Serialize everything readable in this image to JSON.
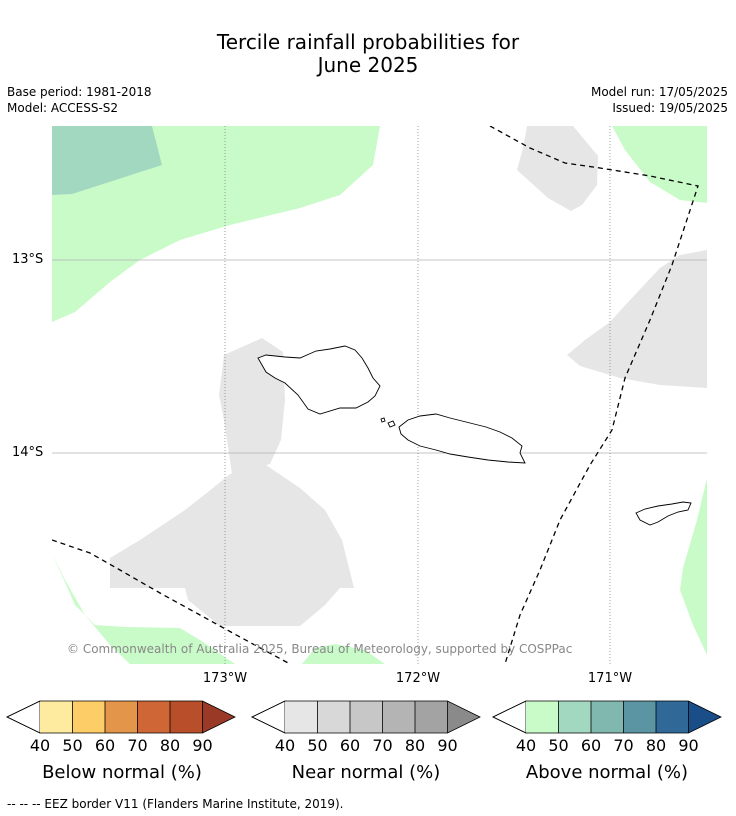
{
  "title_line1": "Tercile rainfall probabilities for",
  "title_line2": "June 2025",
  "base_period": "Base period: 1981-2018",
  "model": "Model: ACCESS-S2",
  "model_run": "Model run: 17/05/2025",
  "issued": "Issued: 19/05/2025",
  "lat_labels": [
    "13°S",
    "14°S"
  ],
  "lon_labels": [
    "173°W",
    "172°W",
    "171°W"
  ],
  "copyright": "© Commonwealth of Australia 2025, Bureau of Meteorology, supported by COSPPac",
  "colorbars": [
    {
      "label": "Below normal (%)",
      "ticks": [
        "40",
        "50",
        "60",
        "70",
        "80",
        "90"
      ],
      "colors": [
        "#ffeba0",
        "#fdcd68",
        "#e3954a",
        "#cf6636",
        "#b84f2a",
        "#9a3a26"
      ]
    },
    {
      "label": "Near normal (%)",
      "ticks": [
        "40",
        "50",
        "60",
        "70",
        "80",
        "90"
      ],
      "colors": [
        "#e6e6e6",
        "#d8d8d8",
        "#c7c7c7",
        "#b4b4b4",
        "#a3a3a3",
        "#8a8a8a"
      ]
    },
    {
      "label": "Above normal (%)",
      "ticks": [
        "40",
        "50",
        "60",
        "70",
        "80",
        "90"
      ],
      "colors": [
        "#c9fbc9",
        "#a3d8c0",
        "#80b8b0",
        "#5b95a3",
        "#306898",
        "#1a4e88"
      ]
    }
  ],
  "footer": "--  --  -- EEZ border V11 (Flanders Marine Institute, 2019).",
  "colors": {
    "above_40": "#c9fbc9",
    "above_50": "#a3d8c0",
    "near_40": "#e6e6e6"
  }
}
